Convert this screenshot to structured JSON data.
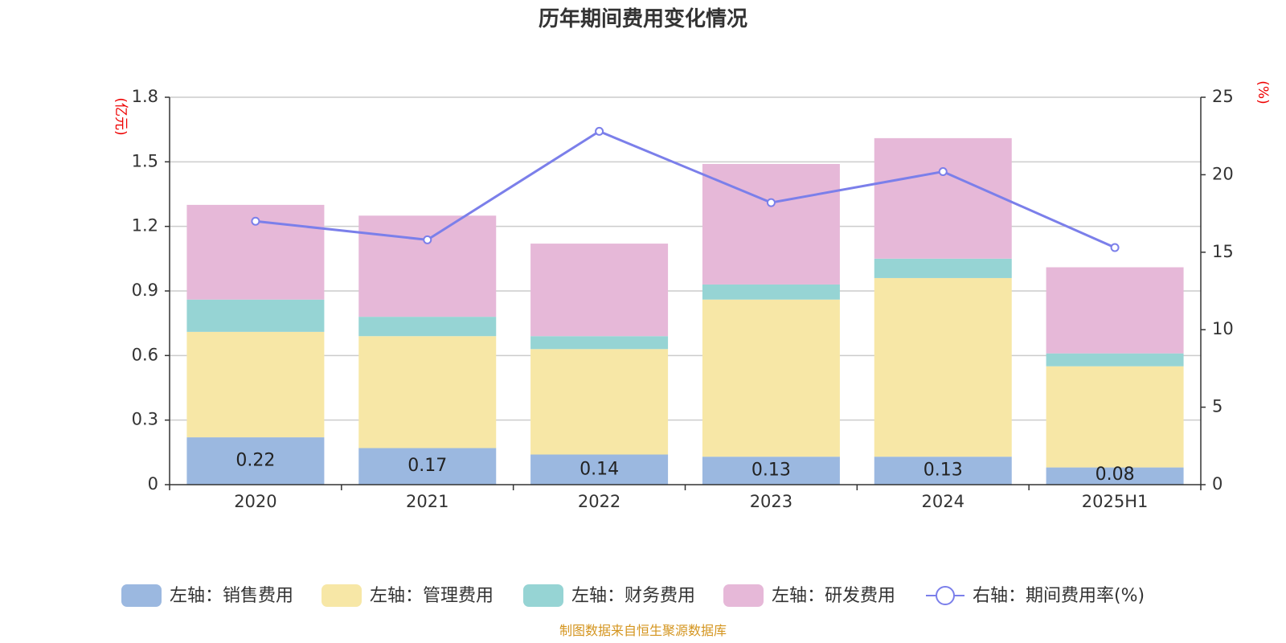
{
  "chart_data": {
    "type": "bar",
    "stacked": true,
    "title": "历年期间费用变化情况",
    "categories": [
      "2020",
      "2021",
      "2022",
      "2023",
      "2024",
      "2025H1"
    ],
    "left_axis": {
      "unit": "(亿元)",
      "ylim": [
        0,
        1.8
      ],
      "ticks": [
        "0",
        "0.3",
        "0.6",
        "0.9",
        "1.2",
        "1.5",
        "1.8"
      ],
      "tick_values": [
        0,
        0.3,
        0.6,
        0.9,
        1.2,
        1.5,
        1.8
      ]
    },
    "right_axis": {
      "unit": "(%)",
      "ylim": [
        0,
        25
      ],
      "ticks": [
        "0",
        "5",
        "10",
        "15",
        "20",
        "25"
      ],
      "tick_values": [
        0,
        5,
        10,
        15,
        20,
        25
      ]
    },
    "series": [
      {
        "name": "左轴：销售费用",
        "axis": "left",
        "color": "#9bb8e0",
        "values": [
          0.22,
          0.17,
          0.14,
          0.13,
          0.13,
          0.08
        ],
        "labels": [
          "0.22",
          "0.17",
          "0.14",
          "0.13",
          "0.13",
          "0.08"
        ]
      },
      {
        "name": "左轴：管理费用",
        "axis": "left",
        "color": "#f7e7a6",
        "values": [
          0.49,
          0.52,
          0.49,
          0.73,
          0.83,
          0.47
        ]
      },
      {
        "name": "左轴：财务费用",
        "axis": "left",
        "color": "#96d4d4",
        "values": [
          0.15,
          0.09,
          0.06,
          0.07,
          0.09,
          0.06
        ]
      },
      {
        "name": "左轴：研发费用",
        "axis": "left",
        "color": "#e6b8d8",
        "values": [
          0.44,
          0.47,
          0.43,
          0.56,
          0.56,
          0.4
        ]
      }
    ],
    "line": {
      "name": "右轴：期间费用率(%)",
      "axis": "right",
      "color": "#7b7fea",
      "values": [
        17.0,
        15.8,
        22.8,
        18.2,
        20.2,
        15.3
      ]
    }
  },
  "source": "制图数据来自恒生聚源数据库"
}
